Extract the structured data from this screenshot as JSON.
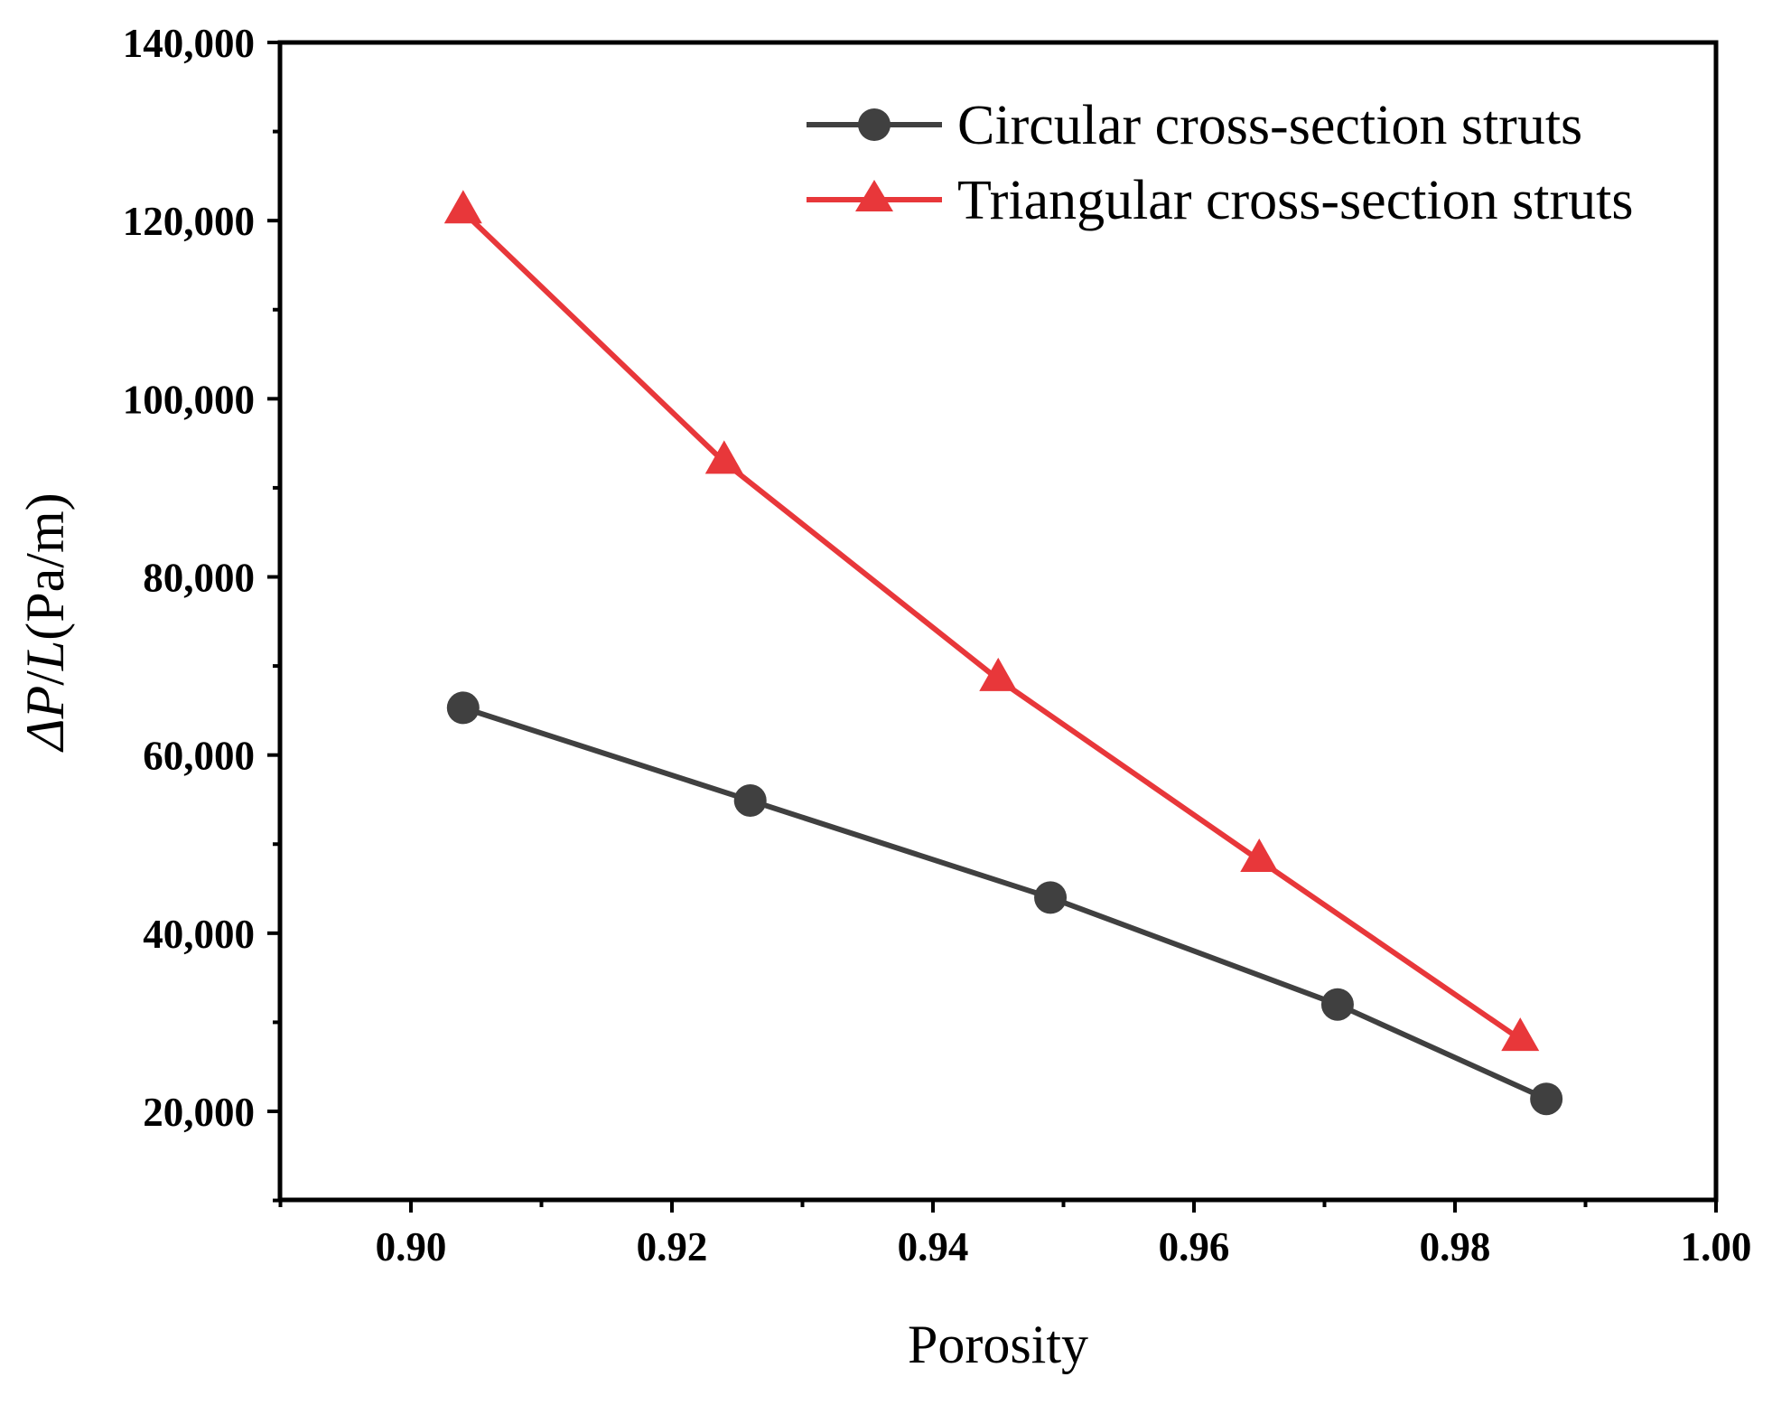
{
  "chart_data": {
    "type": "line",
    "title": "",
    "xlabel": "Porosity",
    "ylabel": {
      "prefix": "Δ",
      "var1": "P",
      "sep": "/",
      "var2": "L",
      "unit": "(Pa/m)"
    },
    "xlim": [
      0.89,
      1.0
    ],
    "ylim": [
      10000,
      140000
    ],
    "x_ticks": [
      0.9,
      0.92,
      0.94,
      0.96,
      0.98,
      1.0
    ],
    "x_tick_labels": [
      "0.90",
      "0.92",
      "0.94",
      "0.96",
      "0.98",
      "1.00"
    ],
    "y_ticks": [
      20000,
      40000,
      60000,
      80000,
      100000,
      120000,
      140000
    ],
    "y_tick_labels": [
      "20,000",
      "40,000",
      "60,000",
      "80,000",
      "100,000",
      "120,000",
      "140,000"
    ],
    "grid": false,
    "legend_position": "top-right",
    "series": [
      {
        "name": "Circular cross-section struts",
        "color": "#404040",
        "marker": "circle",
        "x": [
          0.904,
          0.926,
          0.949,
          0.971,
          0.987
        ],
        "y": [
          65300,
          54900,
          44000,
          32000,
          21400
        ]
      },
      {
        "name": "Triangular cross-section struts",
        "color": "#e8373a",
        "marker": "triangle",
        "x": [
          0.904,
          0.924,
          0.945,
          0.965,
          0.985
        ],
        "y": [
          121000,
          92900,
          68500,
          48200,
          28100
        ]
      }
    ]
  }
}
